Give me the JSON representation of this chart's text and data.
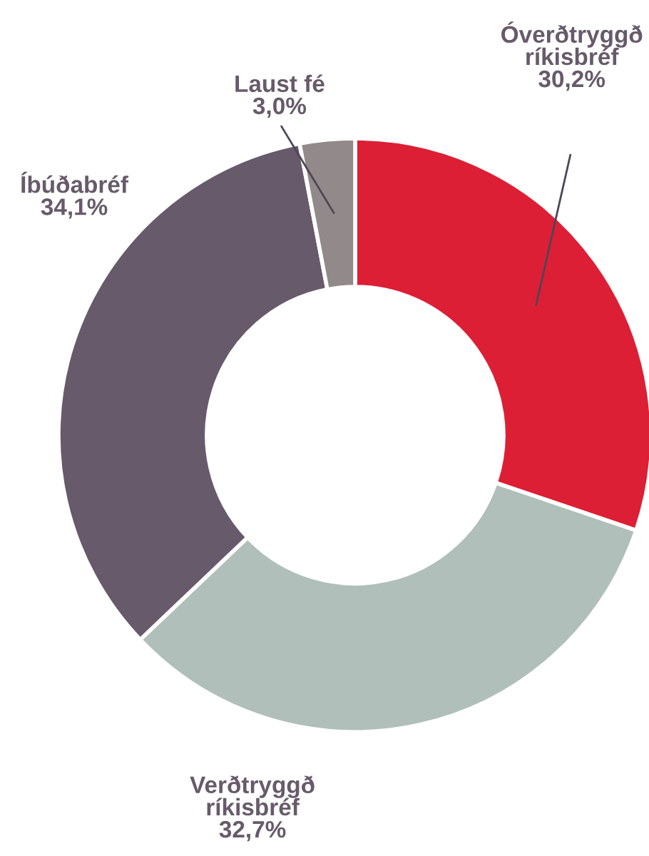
{
  "chart_data": {
    "type": "donut",
    "categories": [
      "Óverðtryggð ríkisbréf",
      "Verðtryggð ríkisbréf",
      "Íbúðabréf",
      "Laust fé"
    ],
    "values": [
      30.2,
      32.7,
      34.1,
      3.0
    ],
    "colors": [
      "#dc1f35",
      "#b0bfb9",
      "#675a6a",
      "#928a8a"
    ],
    "value_labels": [
      "30,2%",
      "32,7%",
      "34,1%",
      "3,0%"
    ]
  }
}
